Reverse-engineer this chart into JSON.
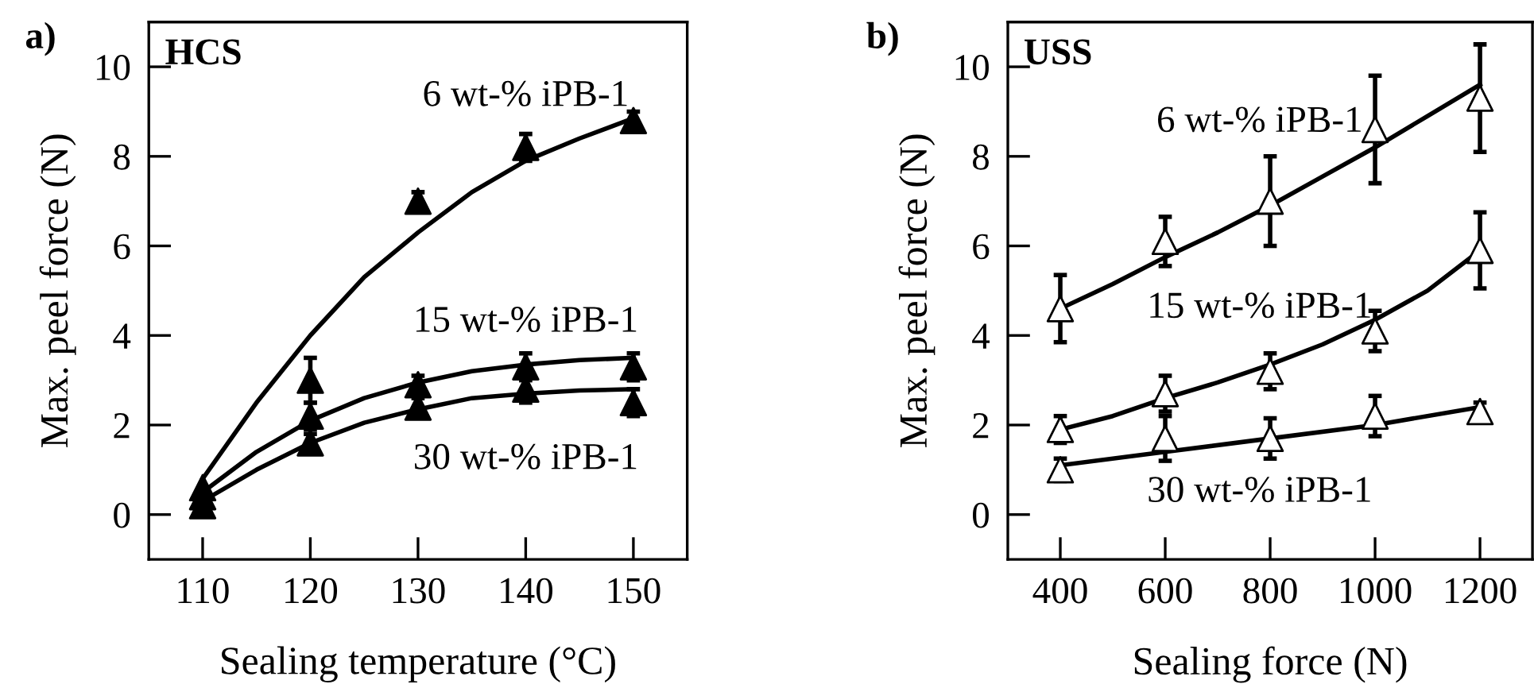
{
  "chart_data": [
    {
      "type": "scatter",
      "title": "a)",
      "subtitle": "HCS",
      "xlabel": "Sealing temperature (°C)",
      "ylabel": "Max. peel force (N)",
      "xlim": [
        105,
        155
      ],
      "xticks": [
        110,
        120,
        130,
        140,
        150
      ],
      "ylim": [
        -1,
        11
      ],
      "yticks": [
        0,
        2,
        4,
        6,
        8,
        10
      ],
      "marker": "triangle",
      "grid": false,
      "legend": false,
      "series": [
        {
          "x": [
            110,
            120,
            130,
            140,
            150
          ],
          "values": [
            0.6,
            3.0,
            7.0,
            8.2,
            8.8
          ],
          "errors": [
            null,
            0.5,
            0.2,
            0.3,
            0.2
          ],
          "color": "#000000"
        },
        {
          "x": [
            110,
            120,
            130,
            140,
            150
          ],
          "values": [
            0.4,
            2.2,
            2.9,
            3.3,
            3.3
          ],
          "errors": [
            null,
            0.3,
            0.2,
            0.3,
            0.3
          ],
          "color": "#000000"
        },
        {
          "x": [
            110,
            120,
            130,
            140,
            150
          ],
          "values": [
            0.2,
            1.6,
            2.4,
            2.8,
            2.5
          ],
          "errors": [
            0.2,
            0.2,
            0.2,
            0.3,
            0.3
          ],
          "color": "#000000"
        },
        {
          "type": "line",
          "name": "6 wt-% iPB-1",
          "marker": "none",
          "x": [
            110,
            115,
            120,
            125,
            130,
            135,
            140,
            145,
            150
          ],
          "values": [
            0.8,
            2.5,
            4.0,
            5.3,
            6.3,
            7.2,
            7.9,
            8.4,
            8.85
          ],
          "color": "#000000"
        },
        {
          "type": "line",
          "name": "15 wt-% iPB-1",
          "marker": "none",
          "x": [
            110,
            115,
            120,
            125,
            130,
            135,
            140,
            145,
            150
          ],
          "values": [
            0.5,
            1.4,
            2.1,
            2.6,
            2.95,
            3.2,
            3.35,
            3.45,
            3.5
          ],
          "color": "#000000"
        },
        {
          "type": "line",
          "name": "30 wt-% iPB-1",
          "marker": "none",
          "x": [
            110,
            115,
            120,
            125,
            130,
            135,
            140,
            145,
            150
          ],
          "values": [
            0.3,
            1.0,
            1.6,
            2.05,
            2.35,
            2.6,
            2.7,
            2.77,
            2.8
          ],
          "color": "#000000"
        }
      ]
    },
    {
      "type": "scatter",
      "title": "b)",
      "subtitle": "USS",
      "xlabel": "Sealing force (N)",
      "ylabel": "Max. peel force (N)",
      "xlim": [
        300,
        1300
      ],
      "xticks": [
        400,
        600,
        800,
        1000,
        1200
      ],
      "ylim": [
        -1,
        11
      ],
      "yticks": [
        0,
        2,
        4,
        6,
        8,
        10
      ],
      "marker": "triangle",
      "grid": false,
      "legend": false,
      "series": [
        {
          "x": [
            400,
            600,
            800,
            1000,
            1200
          ],
          "values": [
            4.6,
            6.1,
            7.0,
            8.6,
            9.3
          ],
          "errors": [
            0.75,
            0.55,
            1.0,
            1.2,
            1.2
          ],
          "color": "#ffffff"
        },
        {
          "x": [
            400,
            600,
            800,
            1000,
            1200
          ],
          "values": [
            1.9,
            2.7,
            3.2,
            4.1,
            5.9
          ],
          "errors": [
            0.3,
            0.4,
            0.4,
            0.45,
            0.85
          ],
          "color": "#ffffff"
        },
        {
          "x": [
            400,
            600,
            800,
            1000,
            1200
          ],
          "values": [
            1.0,
            1.7,
            1.7,
            2.2,
            2.3
          ],
          "errors": [
            0.25,
            0.5,
            0.45,
            0.45,
            0.2
          ],
          "color": "#ffffff"
        },
        {
          "type": "line",
          "name": "6 wt-% iPB-1",
          "marker": "none",
          "x": [
            400,
            500,
            600,
            700,
            800,
            900,
            1000,
            1100,
            1200
          ],
          "values": [
            4.6,
            5.15,
            5.75,
            6.3,
            6.9,
            7.55,
            8.2,
            8.9,
            9.6
          ],
          "color": "#000000"
        },
        {
          "type": "line",
          "name": "15 wt-% iPB-1",
          "marker": "none",
          "x": [
            400,
            500,
            600,
            700,
            800,
            900,
            1000,
            1100,
            1200
          ],
          "values": [
            1.9,
            2.2,
            2.6,
            2.95,
            3.35,
            3.8,
            4.35,
            5.0,
            5.9
          ],
          "color": "#000000"
        },
        {
          "type": "line",
          "name": "30 wt-% iPB-1",
          "marker": "none",
          "x": [
            400,
            600,
            800,
            1000,
            1200
          ],
          "values": [
            1.1,
            1.4,
            1.7,
            2.0,
            2.4
          ],
          "color": "#000000"
        }
      ]
    }
  ]
}
